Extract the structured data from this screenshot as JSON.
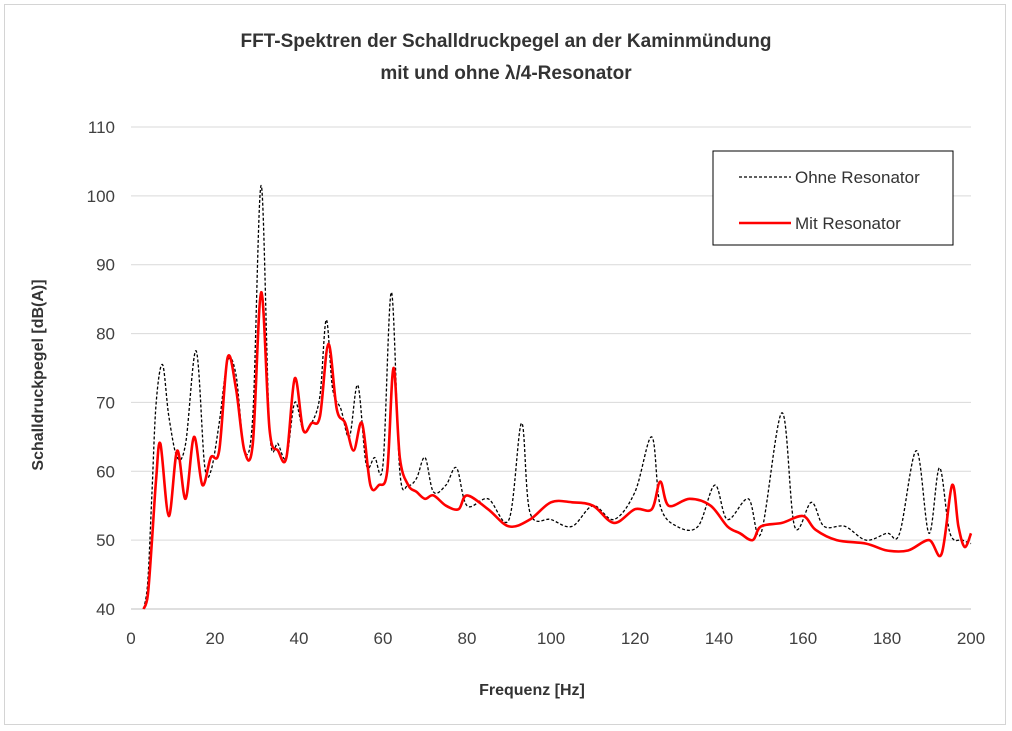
{
  "chart_data": {
    "type": "line",
    "title_line1": "FFT-Spektren der Schalldruckpegel an der Kaminmündung",
    "title_line2": "mit und ohne λ/4-Resonator",
    "xlabel": "Frequenz [Hz]",
    "ylabel": "Schalldruckpegel [dB(A)]",
    "xlim": [
      0,
      200
    ],
    "ylim": [
      40,
      110
    ],
    "x_ticks": [
      0,
      20,
      40,
      60,
      80,
      100,
      120,
      140,
      160,
      180,
      200
    ],
    "y_ticks": [
      40,
      50,
      60,
      70,
      80,
      90,
      100,
      110
    ],
    "grid": "horizontal",
    "legend_position": "top-right",
    "series": [
      {
        "name": "Ohne Resonator",
        "style": "dashed",
        "color": "#000000",
        "x": [
          3,
          4,
          5,
          6,
          7.5,
          9,
          11,
          13,
          15.5,
          17.5,
          19,
          21,
          23,
          25,
          27,
          29,
          31,
          33,
          35,
          37,
          39,
          41,
          43,
          45,
          46.5,
          48,
          50,
          52,
          54,
          56,
          58,
          60,
          62,
          64,
          66,
          68,
          70,
          72,
          75,
          77.5,
          80,
          85,
          90,
          93,
          95,
          100,
          105,
          110,
          115,
          120,
          124,
          126,
          130,
          135,
          139,
          142,
          147,
          150,
          155,
          158,
          162,
          165,
          170,
          175,
          180,
          183,
          187,
          190,
          192.5,
          195,
          198,
          200
        ],
        "y": [
          40,
          44,
          57,
          70,
          75.5,
          68,
          62,
          64,
          77.5,
          61,
          60,
          67,
          76,
          74,
          63,
          68,
          101.5,
          66,
          64,
          62,
          70,
          66,
          67,
          71,
          82,
          72,
          69,
          65,
          72.5,
          61,
          62,
          61,
          86,
          60,
          58,
          59,
          62,
          57,
          58,
          60.5,
          55,
          56,
          53,
          67,
          54,
          53,
          52,
          55,
          53,
          57,
          65,
          55,
          52,
          52,
          58,
          53,
          56,
          51,
          68.5,
          52,
          55.5,
          52,
          52,
          50,
          51,
          51,
          63,
          51,
          60.5,
          51,
          50,
          49.5
        ]
      },
      {
        "name": "Mit Resonator",
        "style": "solid",
        "color": "#ff0000",
        "x": [
          3,
          4,
          5,
          6,
          7,
          9,
          11,
          13,
          15,
          17,
          19,
          21,
          23,
          25,
          27,
          29,
          31,
          33,
          35,
          37,
          39,
          41,
          43,
          45,
          47,
          49,
          51,
          53,
          55,
          57,
          59,
          61,
          62.5,
          64,
          66,
          68,
          70,
          72,
          75,
          78,
          80,
          85,
          90,
          95,
          100,
          105,
          110,
          115,
          120,
          124,
          126,
          128,
          133,
          138,
          142,
          145,
          148,
          150,
          155,
          160,
          163,
          168,
          175,
          180,
          185,
          190,
          193,
          195.5,
          197,
          198.5,
          200
        ],
        "y": [
          40,
          42,
          50,
          59,
          64,
          53.5,
          63,
          56,
          65,
          58,
          62,
          63,
          76.5,
          72,
          63,
          64,
          86,
          66,
          63,
          62,
          73.5,
          66,
          67,
          68,
          78.5,
          69,
          67,
          63,
          67,
          58,
          58,
          60,
          75,
          62,
          58,
          57,
          56,
          56.5,
          55,
          54.5,
          56.5,
          54.5,
          52,
          53,
          55.5,
          55.5,
          55,
          52.5,
          54.5,
          54.5,
          58.5,
          55,
          56,
          55,
          52,
          51,
          50,
          52,
          52.5,
          53.5,
          51.5,
          50,
          49.5,
          48.5,
          48.5,
          50,
          48,
          58,
          52,
          49,
          51
        ]
      }
    ]
  }
}
